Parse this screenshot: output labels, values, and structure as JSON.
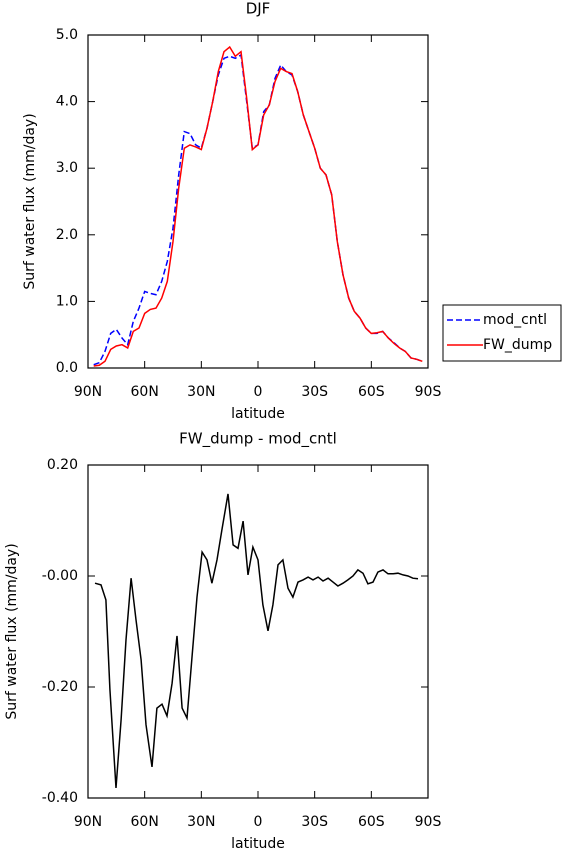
{
  "chart_data": [
    {
      "type": "line",
      "title": "DJF",
      "ylabel": "Surf water flux (mm/day)",
      "xlabel": "latitude",
      "x": [
        87,
        84,
        81,
        78,
        75,
        72,
        69,
        66,
        63,
        60,
        57,
        54,
        51,
        48,
        45,
        42,
        39,
        36,
        33,
        30,
        27,
        24,
        21,
        18,
        15,
        12,
        9,
        6,
        3,
        0,
        -3,
        -6,
        -9,
        -12,
        -15,
        -18,
        -21,
        -24,
        -27,
        -30,
        -33,
        -36,
        -39,
        -42,
        -45,
        -48,
        -51,
        -54,
        -57,
        -60,
        -63,
        -66,
        -69,
        -72,
        -75,
        -78,
        -81,
        -84,
        -87
      ],
      "series": [
        {
          "name": "mod_cntl",
          "color": "#0000ff",
          "linestyle": "dashed",
          "values": [
            0.05,
            0.08,
            0.25,
            0.52,
            0.58,
            0.45,
            0.35,
            0.7,
            0.9,
            1.15,
            1.12,
            1.1,
            1.3,
            1.6,
            2.1,
            2.9,
            3.55,
            3.52,
            3.35,
            3.3,
            3.6,
            4.0,
            4.4,
            4.65,
            4.68,
            4.65,
            4.7,
            4.0,
            3.3,
            3.35,
            3.85,
            3.95,
            4.35,
            4.55,
            4.45,
            4.4,
            4.15,
            3.8,
            3.55,
            3.3,
            3.0,
            2.9,
            2.6,
            1.9,
            1.4,
            1.05,
            0.85,
            0.75,
            0.6,
            0.52,
            0.52,
            0.55,
            0.45,
            0.38,
            0.3,
            0.25,
            0.15,
            0.13,
            0.1
          ]
        },
        {
          "name": "FW_dump",
          "color": "#ff0000",
          "linestyle": "solid",
          "values": [
            0.03,
            0.04,
            0.1,
            0.28,
            0.33,
            0.35,
            0.3,
            0.55,
            0.6,
            0.82,
            0.88,
            0.9,
            1.05,
            1.3,
            1.9,
            2.7,
            3.3,
            3.35,
            3.32,
            3.28,
            3.6,
            4.0,
            4.45,
            4.75,
            4.82,
            4.68,
            4.75,
            4.05,
            3.28,
            3.35,
            3.8,
            3.95,
            4.3,
            4.5,
            4.45,
            4.42,
            4.15,
            3.8,
            3.55,
            3.3,
            3.0,
            2.9,
            2.6,
            1.9,
            1.4,
            1.05,
            0.85,
            0.75,
            0.6,
            0.52,
            0.53,
            0.55,
            0.45,
            0.37,
            0.3,
            0.25,
            0.15,
            0.13,
            0.1
          ]
        }
      ],
      "xlim": [
        90,
        -90
      ],
      "xticks": [
        {
          "value": 90,
          "label": "90N"
        },
        {
          "value": 60,
          "label": "60N"
        },
        {
          "value": 30,
          "label": "30N"
        },
        0,
        {
          "value": -30,
          "label": "30S"
        },
        {
          "value": -60,
          "label": "60S"
        },
        {
          "value": -90,
          "label": "90S"
        }
      ],
      "ylim": [
        0,
        5
      ],
      "yticks": [
        {
          "value": 0,
          "label": "0.0"
        },
        {
          "value": 1,
          "label": "1.0"
        },
        {
          "value": 2,
          "label": "2.0"
        },
        {
          "value": 3,
          "label": "3.0"
        },
        {
          "value": 4,
          "label": "4.0"
        },
        {
          "value": 5,
          "label": "5.0"
        }
      ],
      "legend": "right"
    },
    {
      "type": "line",
      "title": "FW_dump - mod_cntl",
      "ylabel": "Surf water flux (mm/day)",
      "xlabel": "latitude",
      "x": [
        86.3,
        83.1,
        80.5,
        78.4,
        75.2,
        72.5,
        69.9,
        67.2,
        64.6,
        61.9,
        59.3,
        56.1,
        53.5,
        50.8,
        48.2,
        45.5,
        42.9,
        40.2,
        37.6,
        34.9,
        32.3,
        29.6,
        27.0,
        24.4,
        21.7,
        19.1,
        15.9,
        13.2,
        10.6,
        7.9,
        5.3,
        2.7,
        0.0,
        -2.6,
        -5.3,
        -7.9,
        -10.6,
        -13.2,
        -15.9,
        -18.5,
        -21.2,
        -23.8,
        -26.5,
        -29.1,
        -31.8,
        -34.4,
        -37.1,
        -39.7,
        -42.3,
        -45.0,
        -47.6,
        -50.3,
        -52.9,
        -55.6,
        -58.2,
        -60.9,
        -63.5,
        -66.2,
        -68.8,
        -71.5,
        -74.1,
        -76.8,
        -79.4,
        -82.0,
        -84.7
      ],
      "color": "#000000",
      "values": [
        -0.013,
        -0.016,
        -0.043,
        -0.204,
        -0.382,
        -0.259,
        -0.115,
        -0.004,
        -0.079,
        -0.151,
        -0.268,
        -0.344,
        -0.238,
        -0.231,
        -0.252,
        -0.193,
        -0.108,
        -0.238,
        -0.256,
        -0.144,
        -0.038,
        0.043,
        0.029,
        -0.013,
        0.029,
        0.083,
        0.148,
        0.056,
        0.05,
        0.099,
        0.002,
        0.052,
        0.029,
        -0.052,
        -0.099,
        -0.052,
        0.02,
        0.029,
        -0.022,
        -0.038,
        -0.011,
        -0.007,
        -0.002,
        -0.007,
        -0.002,
        -0.009,
        -0.004,
        -0.011,
        -0.018,
        -0.013,
        -0.007,
        0.0,
        0.011,
        0.005,
        -0.014,
        -0.011,
        0.007,
        0.011,
        0.004,
        0.004,
        0.005,
        0.002,
        0.0,
        -0.004,
        -0.005
      ],
      "xlim": [
        90,
        -90
      ],
      "xticks": [
        {
          "value": 90,
          "label": "90N"
        },
        {
          "value": 60,
          "label": "60N"
        },
        {
          "value": 30,
          "label": "30N"
        },
        0,
        {
          "value": -30,
          "label": "30S"
        },
        {
          "value": -60,
          "label": "60S"
        },
        {
          "value": -90,
          "label": "90S"
        }
      ],
      "ylim": [
        -0.4,
        0.2
      ],
      "yticks": [
        {
          "value": 0.2,
          "label": "0.20"
        },
        {
          "value": 0,
          "label": "-0.00"
        },
        {
          "value": -0.2,
          "label": "-0.20"
        },
        {
          "value": -0.4,
          "label": "-0.40"
        }
      ]
    }
  ]
}
